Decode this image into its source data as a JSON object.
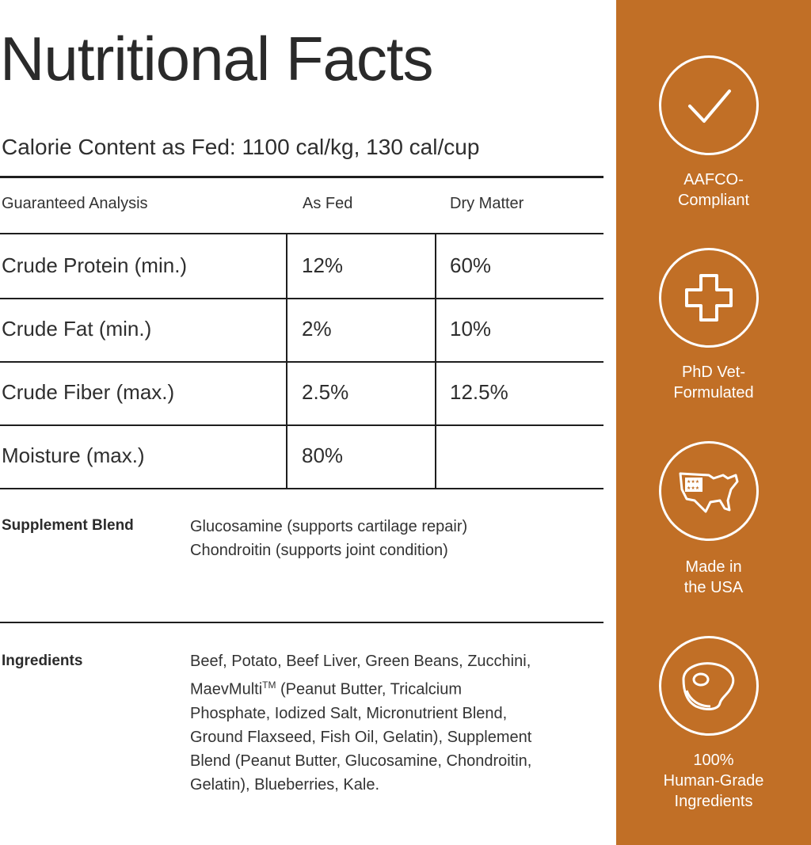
{
  "title": "Nutritional Facts",
  "calorie_content": "Calorie Content as Fed: 1100 cal/kg, 130 cal/cup",
  "analysis": {
    "headers": [
      "Guaranteed Analysis",
      "As Fed",
      "Dry Matter"
    ],
    "rows": [
      {
        "name": "Crude Protein (min.)",
        "as_fed": "12%",
        "dry_matter": "60%"
      },
      {
        "name": "Crude Fat (min.)",
        "as_fed": "2%",
        "dry_matter": "10%"
      },
      {
        "name": "Crude Fiber (max.)",
        "as_fed": "2.5%",
        "dry_matter": "12.5%"
      },
      {
        "name": "Moisture (max.)",
        "as_fed": "80%",
        "dry_matter": ""
      }
    ]
  },
  "supplement": {
    "label": "Supplement Blend",
    "lines": [
      "Glucosamine (supports cartilage repair)",
      "Chondroitin (supports joint condition)"
    ]
  },
  "ingredients": {
    "label": "Ingredients",
    "line1": "Beef, Potato, Beef Liver, Green Beans, Zucchini,",
    "line2_pre": "MaevMulti",
    "line2_tm": "TM",
    "line2_post": " (Peanut Butter, Tricalcium",
    "line3": "Phosphate, Iodized Salt, Micronutrient Blend,",
    "line4": "Ground Flaxseed, Fish Oil, Gelatin), Supplement",
    "line5": "Blend (Peanut Butter, Glucosamine, Chondroitin,",
    "line6": "Gelatin), Blueberries, Kale."
  },
  "badges": [
    {
      "icon": "checkmark-icon",
      "lines": [
        "AAFCO-",
        "Compliant"
      ]
    },
    {
      "icon": "medical-cross-icon",
      "lines": [
        "PhD Vet-",
        "Formulated"
      ]
    },
    {
      "icon": "usa-map-icon",
      "lines": [
        "Made in",
        "the USA"
      ]
    },
    {
      "icon": "steak-icon",
      "lines": [
        "100%",
        "Human-Grade",
        "Ingredients"
      ]
    }
  ],
  "colors": {
    "accent": "#c16f26",
    "text": "#2b2b2b",
    "rule": "#1e1e1e",
    "badge_fg": "#ffffff"
  }
}
